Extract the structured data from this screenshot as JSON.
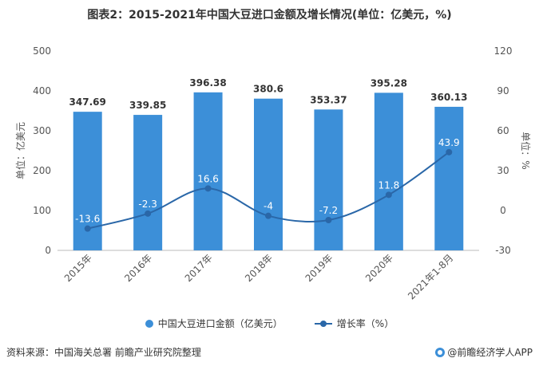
{
  "title": "图表2：2015-2021年中国大豆进口金额及增长情况(单位：亿美元，%)",
  "source": "资料来源：中国海关总署 前瞻产业研究院整理",
  "brand": "@前瞻经济学人APP",
  "colors": {
    "bar": "#3c8fd8",
    "line": "#2a67a8",
    "axis_text": "#555555"
  },
  "chart_data": {
    "type": "bar",
    "categories": [
      "2015年",
      "2016年",
      "2017年",
      "2018年",
      "2019年",
      "2020年",
      "2021年1-8月"
    ],
    "series": [
      {
        "name": "中国大豆进口金额（亿美元）",
        "type": "bar",
        "axis": "left",
        "values": [
          347.69,
          339.85,
          396.38,
          380.6,
          353.37,
          395.28,
          360.13
        ],
        "labels": [
          "347.69",
          "339.85",
          "396.38",
          "380.6",
          "353.37",
          "395.28",
          "360.13"
        ]
      },
      {
        "name": "增长率（%）",
        "type": "line",
        "axis": "right",
        "values": [
          -13.6,
          -2.3,
          16.6,
          -4,
          -7.2,
          11.8,
          43.9
        ],
        "labels": [
          "-13.6",
          "-2.3",
          "16.6",
          "-4",
          "-7.2",
          "11.8",
          "43.9"
        ]
      }
    ],
    "ylabel": "单位：亿美元",
    "y2label": "单位：%",
    "ylim": [
      0,
      500
    ],
    "y2lim": [
      -30,
      120
    ],
    "yticks": [
      0,
      100,
      200,
      300,
      400,
      500
    ],
    "y2ticks": [
      -30,
      0,
      30,
      60,
      90,
      120
    ],
    "grid": false,
    "legend_position": "bottom"
  }
}
